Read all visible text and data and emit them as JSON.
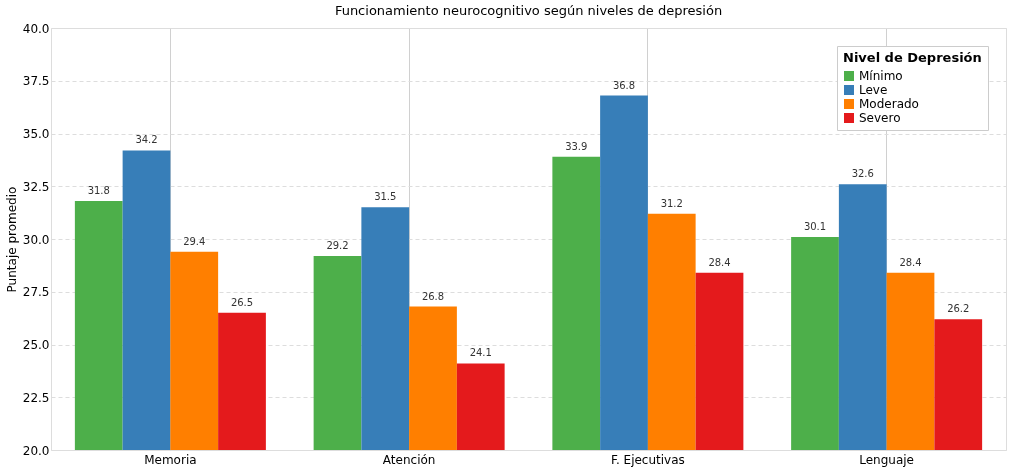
{
  "chart_data": {
    "type": "bar",
    "title": "Funcionamiento neurocognitivo según niveles de depresión",
    "ylabel": "Puntaje promedio",
    "legend_title": "Nivel de Depresión",
    "categories": [
      "Memoria",
      "Atención",
      "F. Ejecutivas",
      "Lenguaje"
    ],
    "series": [
      {
        "name": "Mínimo",
        "color": "#4daf4a",
        "values": [
          31.8,
          29.2,
          33.9,
          30.1
        ]
      },
      {
        "name": "Leve",
        "color": "#377eb8",
        "values": [
          34.2,
          31.5,
          36.8,
          32.6
        ]
      },
      {
        "name": "Moderado",
        "color": "#ff7f00",
        "values": [
          29.4,
          26.8,
          31.2,
          28.4
        ]
      },
      {
        "name": "Severo",
        "color": "#e41a1c",
        "values": [
          26.5,
          24.1,
          28.4,
          26.2
        ]
      }
    ],
    "ylim": [
      20,
      40
    ],
    "yticks": [
      {
        "value": 20,
        "label": "20.0"
      },
      {
        "value": 22.5,
        "label": "22.5"
      },
      {
        "value": 25,
        "label": "25.0"
      },
      {
        "value": 27.5,
        "label": "27.5"
      },
      {
        "value": 30,
        "label": "30.0"
      },
      {
        "value": 32.5,
        "label": "32.5"
      },
      {
        "value": 35,
        "label": "35.0"
      },
      {
        "value": 37.5,
        "label": "37.5"
      },
      {
        "value": 40,
        "label": "40.0"
      }
    ],
    "grid": true,
    "legend": "top right",
    "data_labels": true
  }
}
